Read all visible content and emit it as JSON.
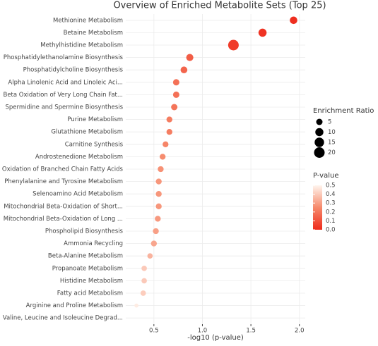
{
  "chart_data": {
    "type": "dot",
    "title": "Overview of Enriched Metabolite Sets (Top 25)",
    "x_label": "-log10 (p-value)",
    "categories": [
      "Methionine Metabolism",
      "Betaine Metabolism",
      "Methylhistidine Metabolism",
      "Phosphatidylethanolamine Biosynthesis",
      "Phosphatidylcholine Biosynthesis",
      "Alpha Linolenic Acid and Linoleic Aci...",
      "Beta Oxidation of Very Long Chain Fat...",
      "Spermidine and Spermine Biosynthesis",
      "Purine Metabolism",
      "Glutathione Metabolism",
      "Carnitine Synthesis",
      "Androstenedione Metabolism",
      "Oxidation of Branched Chain Fatty Acids",
      "Phenylalanine and Tyrosine Metabolism",
      "Selenoamino Acid Metabolism",
      "Mitochondrial Beta-Oxidation of Short...",
      "Mitochondrial Beta-Oxidation of Long ...",
      "Phospholipid Biosynthesis",
      "Ammonia Recycling",
      "Beta-Alanine Metabolism",
      "Propanoate Metabolism",
      "Histidine Metabolism",
      "Fatty acid Metabolism",
      "Arginine and Proline Metabolism",
      "Valine, Leucine and Isoleucine Degrad..."
    ],
    "values": [
      1.94,
      1.62,
      1.32,
      0.87,
      0.81,
      0.73,
      0.73,
      0.71,
      0.66,
      0.66,
      0.62,
      0.59,
      0.57,
      0.55,
      0.55,
      0.55,
      0.54,
      0.52,
      0.5,
      0.46,
      0.4,
      0.4,
      0.39,
      0.32,
      null
    ],
    "sizes": [
      8,
      10,
      20,
      7,
      6,
      5,
      5,
      5,
      4,
      4,
      4,
      4,
      4,
      4,
      4,
      4,
      4,
      4,
      4,
      3,
      3,
      3,
      3,
      1,
      null
    ],
    "pvalues": [
      0.011,
      0.024,
      0.048,
      0.135,
      0.155,
      0.186,
      0.186,
      0.195,
      0.219,
      0.219,
      0.24,
      0.257,
      0.269,
      0.282,
      0.282,
      0.282,
      0.288,
      0.302,
      0.316,
      0.347,
      0.398,
      0.398,
      0.407,
      0.479,
      null
    ],
    "xlim": [
      0.21,
      2.06
    ],
    "xticks": [
      0.5,
      {
        "value": 1,
        "label": "1.0"
      },
      1.5,
      {
        "value": 2,
        "label": "2.0"
      }
    ],
    "grid": true,
    "size_legend": {
      "title": "Enrichment Ratio",
      "values": [
        5,
        10,
        15,
        20
      ]
    },
    "color_legend": {
      "title": "P-value",
      "lim": [
        0,
        0.5
      ],
      "ticks": [
        {
          "value": 0,
          "label": "0.0"
        },
        0.1,
        0.2,
        0.3,
        0.4,
        0.5
      ],
      "colors": [
        "#ee2a1b",
        "#f6896b",
        "#fff5ee"
      ]
    }
  }
}
